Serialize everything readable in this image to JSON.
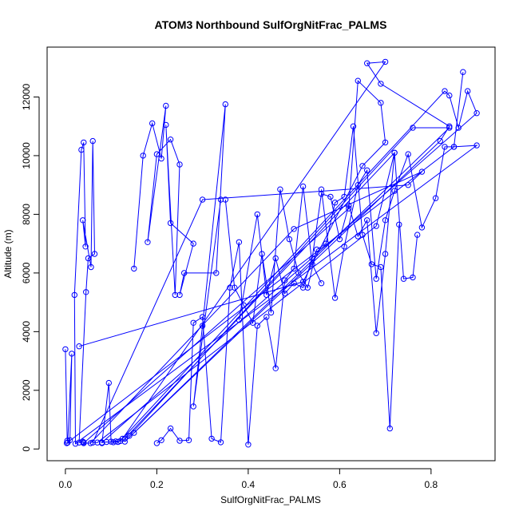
{
  "chart_data": {
    "type": "line",
    "title": "ATOM3 Northbound SulfOrgNitFrac_PALMS",
    "xlabel": "SulfOrgNitFrac_PALMS",
    "ylabel": "Altitude (m)",
    "xlim": [
      -0.04,
      0.94
    ],
    "ylim": [
      -400,
      13700
    ],
    "x_ticks": [
      0.0,
      0.2,
      0.4,
      0.6,
      0.8
    ],
    "x_tick_labels": [
      "0.0",
      "0.2",
      "0.4",
      "0.6",
      "0.8"
    ],
    "y_ticks": [
      0,
      2000,
      4000,
      6000,
      8000,
      10000,
      12000
    ],
    "y_tick_labels": [
      "0",
      "2000",
      "4000",
      "6000",
      "8000",
      "10000",
      "12000"
    ],
    "grid": false,
    "series_color": "#0000ff",
    "marker": "open-circle",
    "series": [
      {
        "x": [
          0.0,
          0.004,
          0.01,
          0.014,
          0.005,
          0.003,
          0.85,
          0.9,
          0.022,
          0.02,
          0.035,
          0.04,
          0.044,
          0.038,
          0.056,
          0.06,
          0.064,
          0.05,
          0.045,
          0.03,
          0.04,
          0.038
        ],
        "y": [
          3400,
          280,
          300,
          3250,
          220,
          200,
          10300,
          10350,
          180,
          5250,
          10200,
          10450,
          6900,
          7800,
          6200,
          10500,
          6650,
          6500,
          5350,
          220,
          230,
          250
        ]
      },
      {
        "x": [
          0.03,
          0.52,
          0.65,
          0.7,
          0.69,
          0.64,
          0.62,
          0.04,
          0.055,
          0.5,
          0.78,
          0.75,
          0.3,
          0.06,
          0.07,
          0.68,
          0.72,
          0.13,
          0.14,
          0.76,
          0.84,
          0.15
        ],
        "y": [
          3500,
          5700,
          9650,
          10450,
          11800,
          12550,
          8200,
          200,
          200,
          7500,
          9450,
          9000,
          8500,
          220,
          220,
          7600,
          10100,
          350,
          450,
          10950,
          10950,
          550
        ]
      },
      {
        "x": [
          0.08,
          0.095,
          0.1,
          0.11,
          0.12,
          0.83,
          0.84,
          0.86,
          0.88,
          0.9,
          0.08,
          0.09,
          0.105,
          0.115,
          0.125,
          0.7,
          0.66,
          0.69,
          0.84,
          0.82,
          0.13
        ],
        "y": [
          200,
          2250,
          250,
          260,
          270,
          12200,
          12050,
          10950,
          12200,
          11450,
          220,
          240,
          230,
          240,
          350,
          13200,
          13150,
          12450,
          11000,
          10500,
          250
        ]
      },
      {
        "x": [
          0.15,
          0.17,
          0.19,
          0.21,
          0.22,
          0.18,
          0.2,
          0.23,
          0.25,
          0.24,
          0.22,
          0.23,
          0.28,
          0.25,
          0.26,
          0.33,
          0.35,
          0.3,
          0.28,
          0.34
        ],
        "y": [
          6150,
          10000,
          11100,
          9900,
          11700,
          7050,
          10050,
          10550,
          9700,
          5250,
          11050,
          7700,
          7000,
          5250,
          6000,
          6000,
          11750,
          4200,
          1450,
          8500
        ]
      },
      {
        "x": [
          0.2,
          0.21,
          0.23,
          0.25,
          0.27,
          0.28,
          0.3,
          0.32,
          0.34,
          0.36,
          0.38,
          0.4,
          0.42,
          0.44,
          0.46,
          0.48,
          0.5,
          0.52,
          0.54,
          0.56
        ],
        "y": [
          200,
          300,
          700,
          280,
          300,
          4300,
          4500,
          350,
          230,
          5500,
          7050,
          150,
          4200,
          4500,
          2750,
          5750,
          6150,
          8950,
          6300,
          5650
        ]
      },
      {
        "x": [
          0.35,
          0.37,
          0.39,
          0.41,
          0.43,
          0.45,
          0.47,
          0.49,
          0.51,
          0.53,
          0.55,
          0.57,
          0.59,
          0.61,
          0.63,
          0.65,
          0.67,
          0.69,
          0.71,
          0.73
        ],
        "y": [
          8500,
          5500,
          4900,
          4300,
          6650,
          4650,
          8850,
          7150,
          6000,
          5500,
          6800,
          7000,
          8400,
          8600,
          11000,
          7300,
          6300,
          6200,
          700,
          7650
        ]
      },
      {
        "x": [
          0.38,
          0.42,
          0.44,
          0.46,
          0.48,
          0.5,
          0.52,
          0.54,
          0.56,
          0.58,
          0.6,
          0.62,
          0.64,
          0.66,
          0.68,
          0.7,
          0.72,
          0.74,
          0.76,
          0.77
        ],
        "y": [
          4400,
          8000,
          5250,
          6500,
          5300,
          5650,
          5500,
          6500,
          8700,
          8600,
          7150,
          8300,
          7250,
          7800,
          3950,
          6650,
          10100,
          5800,
          5850,
          7300
        ]
      },
      {
        "x": [
          0.56,
          0.59,
          0.61,
          0.64,
          0.66,
          0.68,
          0.7,
          0.72,
          0.75,
          0.78,
          0.81,
          0.83,
          0.85,
          0.87
        ],
        "y": [
          8850,
          5150,
          6900,
          9000,
          9500,
          5800,
          7800,
          8800,
          10050,
          7550,
          8550,
          10300,
          10300,
          12850
        ]
      }
    ]
  }
}
